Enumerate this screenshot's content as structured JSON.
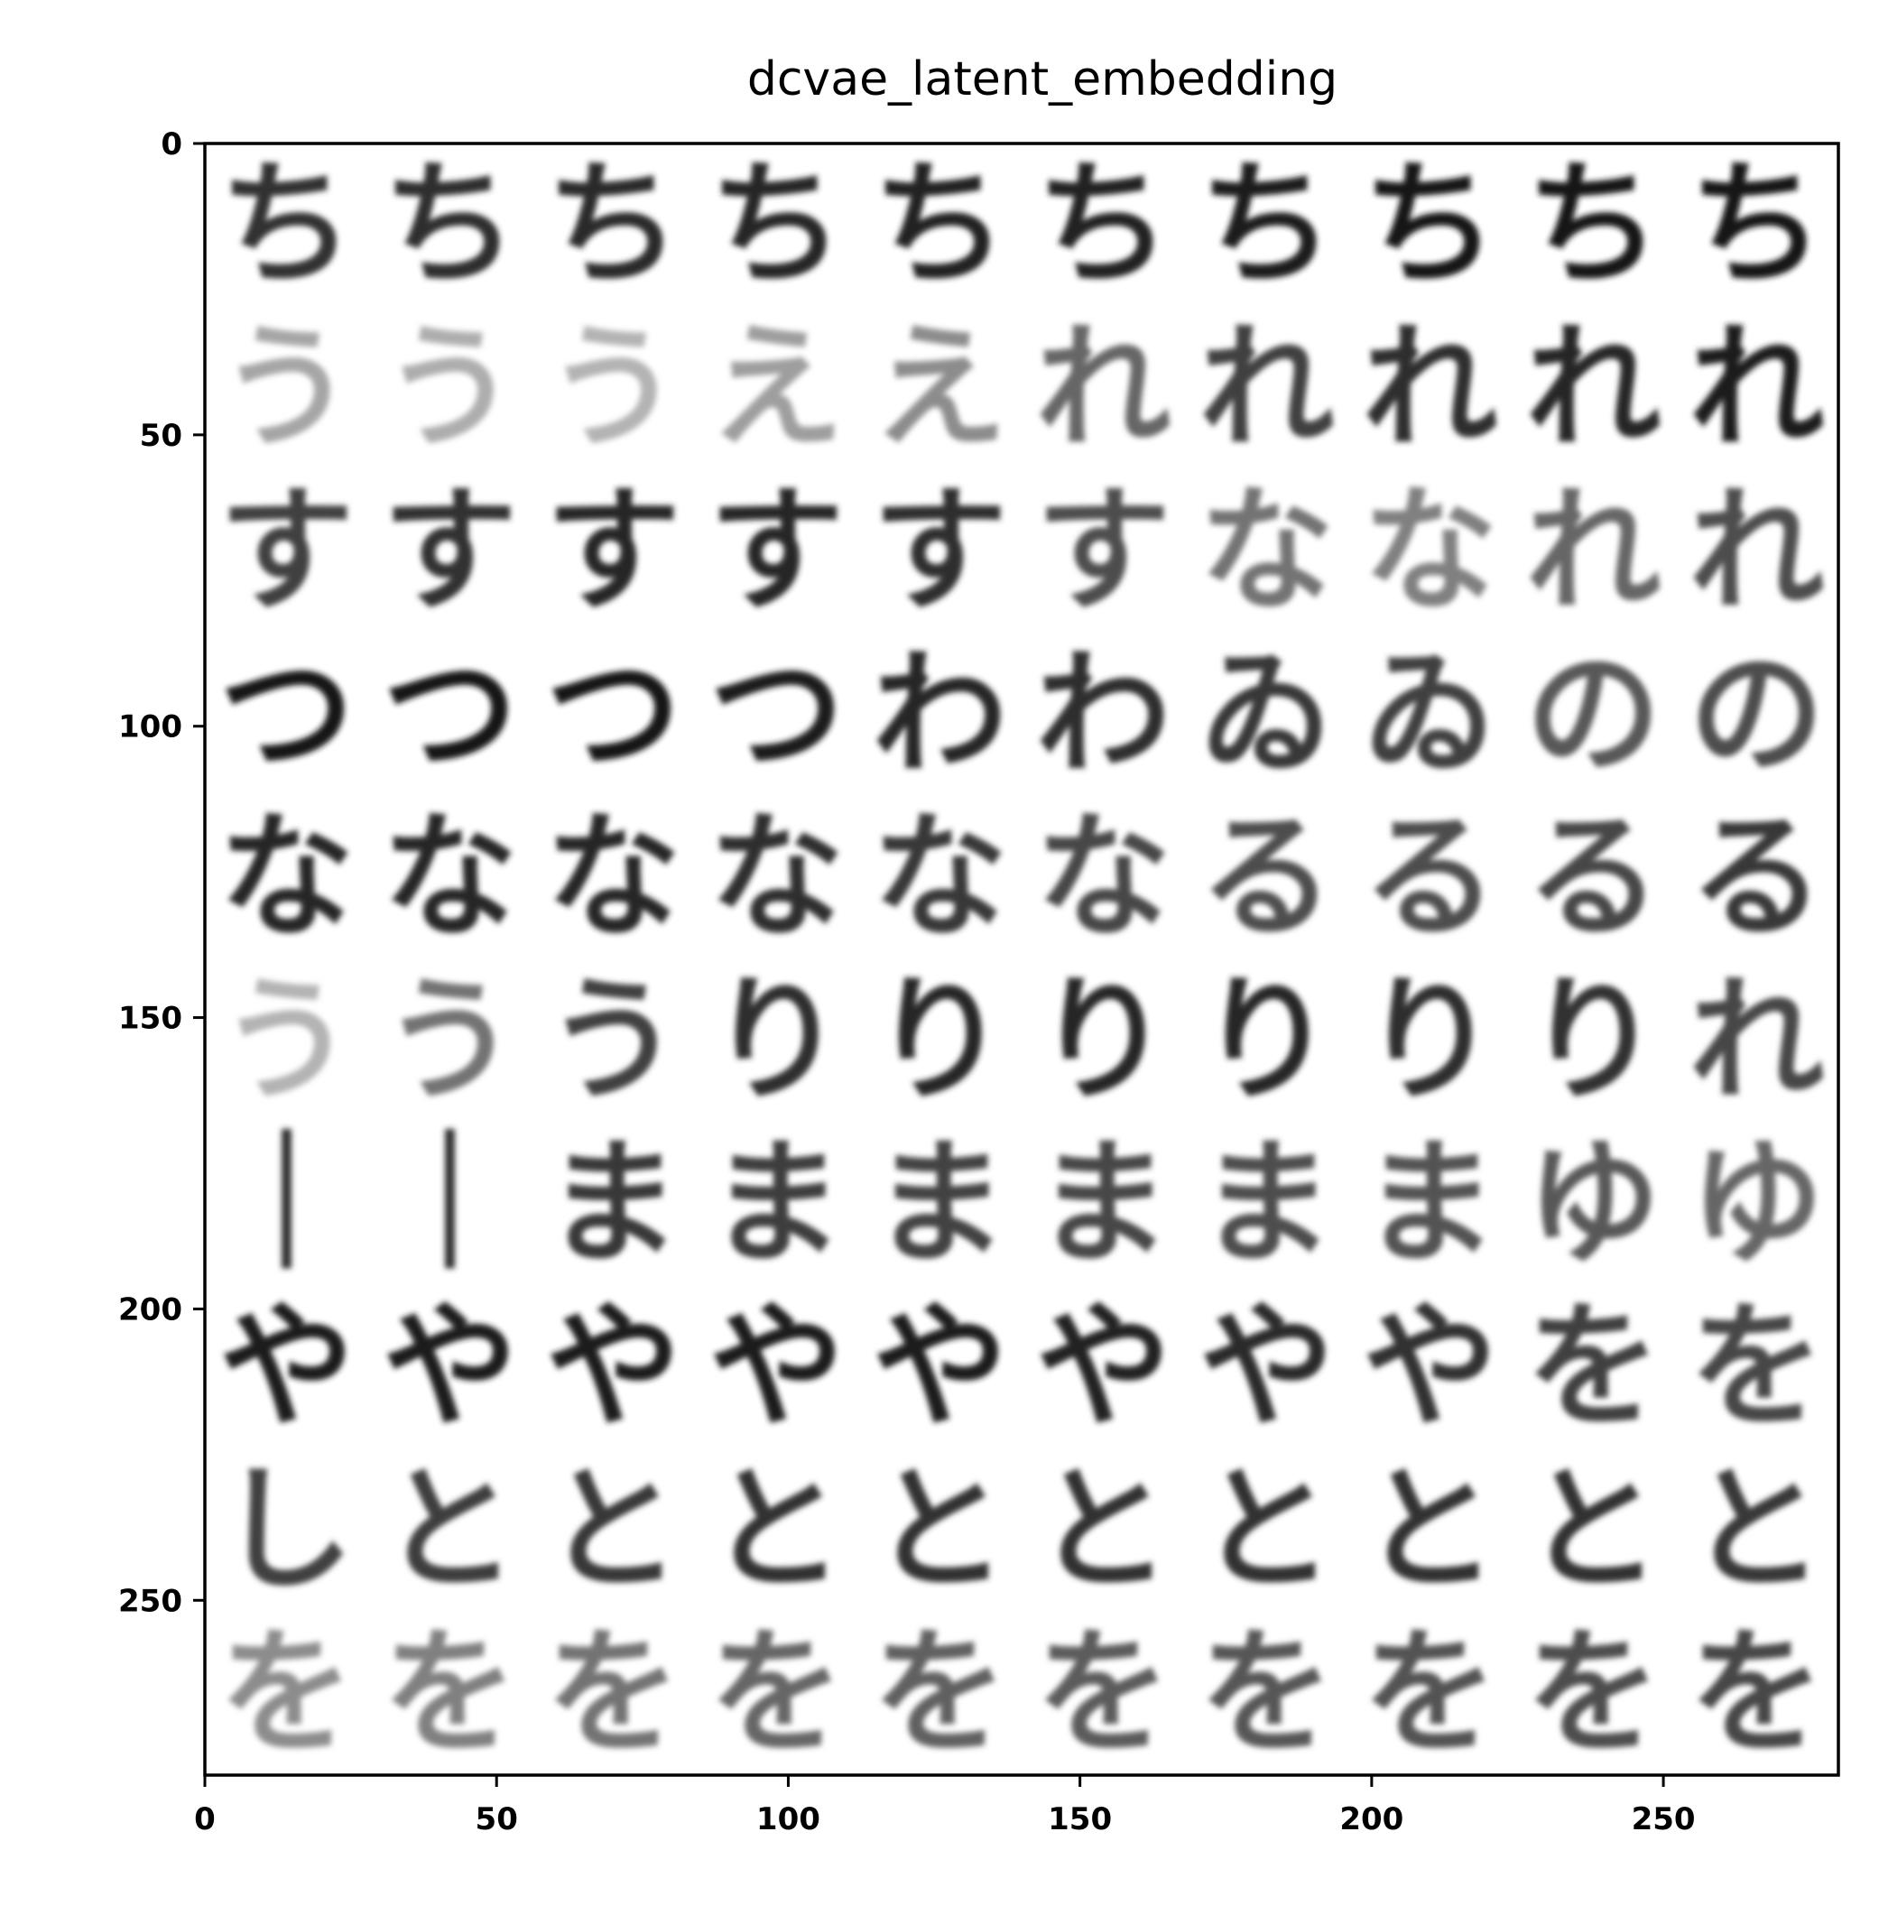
{
  "chart_data": {
    "type": "heatmap",
    "title": "dcvae_latent_embedding",
    "xlabel": "",
    "ylabel": "",
    "xlim": [
      0,
      280
    ],
    "ylim": [
      280,
      0
    ],
    "x_ticks": [
      0,
      50,
      100,
      150,
      200,
      250
    ],
    "y_ticks": [
      0,
      50,
      100,
      150,
      200,
      250
    ],
    "x_tick_labels": [
      "0",
      "50",
      "100",
      "150",
      "200",
      "250"
    ],
    "y_tick_labels": [
      "0",
      "50",
      "100",
      "150",
      "200",
      "250"
    ],
    "grid": false,
    "colormap": "grayscale-inverted",
    "grid_layout": {
      "rows": 10,
      "cols": 10,
      "tile_size": 28
    },
    "tile_rows": [
      {
        "row": 0,
        "glyphs": [
          "ち",
          "ち",
          "ち",
          "ち",
          "ち",
          "ち",
          "ち",
          "ち",
          "ち",
          "ち"
        ],
        "ink_darkness": [
          0.8,
          0.82,
          0.84,
          0.85,
          0.86,
          0.87,
          0.88,
          0.9,
          0.9,
          0.9
        ]
      },
      {
        "row": 1,
        "glyphs": [
          "う",
          "う",
          "う",
          "え",
          "え",
          "れ",
          "れ",
          "れ",
          "れ",
          "れ"
        ],
        "ink_darkness": [
          0.35,
          0.32,
          0.3,
          0.38,
          0.45,
          0.6,
          0.75,
          0.82,
          0.85,
          0.88
        ]
      },
      {
        "row": 2,
        "glyphs": [
          "す",
          "す",
          "す",
          "す",
          "す",
          "す",
          "な",
          "な",
          "れ",
          "れ"
        ],
        "ink_darkness": [
          0.75,
          0.8,
          0.85,
          0.85,
          0.82,
          0.7,
          0.55,
          0.5,
          0.6,
          0.7
        ]
      },
      {
        "row": 3,
        "glyphs": [
          "つ",
          "つ",
          "つ",
          "つ",
          "わ",
          "わ",
          "ゐ",
          "ゐ",
          "の",
          "の"
        ],
        "ink_darkness": [
          0.9,
          0.9,
          0.9,
          0.88,
          0.85,
          0.82,
          0.78,
          0.75,
          0.65,
          0.7
        ]
      },
      {
        "row": 4,
        "glyphs": [
          "な",
          "な",
          "な",
          "な",
          "な",
          "な",
          "る",
          "る",
          "る",
          "る"
        ],
        "ink_darkness": [
          0.85,
          0.85,
          0.85,
          0.82,
          0.78,
          0.72,
          0.7,
          0.7,
          0.72,
          0.78
        ]
      },
      {
        "row": 5,
        "glyphs": [
          "う",
          "う",
          "う",
          "り",
          "り",
          "り",
          "り",
          "り",
          "り",
          "れ"
        ],
        "ink_darkness": [
          0.3,
          0.55,
          0.75,
          0.82,
          0.85,
          0.85,
          0.85,
          0.82,
          0.8,
          0.72
        ]
      },
      {
        "row": 6,
        "glyphs": [
          "｜",
          "｜",
          "ま",
          "ま",
          "ま",
          "ま",
          "ま",
          "ま",
          "ゆ",
          "ゆ"
        ],
        "ink_darkness": [
          0.8,
          0.8,
          0.78,
          0.76,
          0.74,
          0.72,
          0.7,
          0.68,
          0.65,
          0.6
        ]
      },
      {
        "row": 7,
        "glyphs": [
          "や",
          "や",
          "や",
          "や",
          "や",
          "や",
          "や",
          "や",
          "を",
          "を"
        ],
        "ink_darkness": [
          0.88,
          0.88,
          0.88,
          0.88,
          0.88,
          0.86,
          0.84,
          0.8,
          0.75,
          0.72
        ]
      },
      {
        "row": 8,
        "glyphs": [
          "し",
          "と",
          "と",
          "と",
          "と",
          "と",
          "と",
          "と",
          "と",
          "と"
        ],
        "ink_darkness": [
          0.75,
          0.76,
          0.78,
          0.8,
          0.8,
          0.8,
          0.8,
          0.8,
          0.8,
          0.78
        ]
      },
      {
        "row": 9,
        "glyphs": [
          "を",
          "を",
          "を",
          "を",
          "を",
          "を",
          "を",
          "を",
          "を",
          "を"
        ],
        "ink_darkness": [
          0.45,
          0.5,
          0.55,
          0.6,
          0.62,
          0.64,
          0.66,
          0.68,
          0.7,
          0.72
        ]
      }
    ]
  }
}
